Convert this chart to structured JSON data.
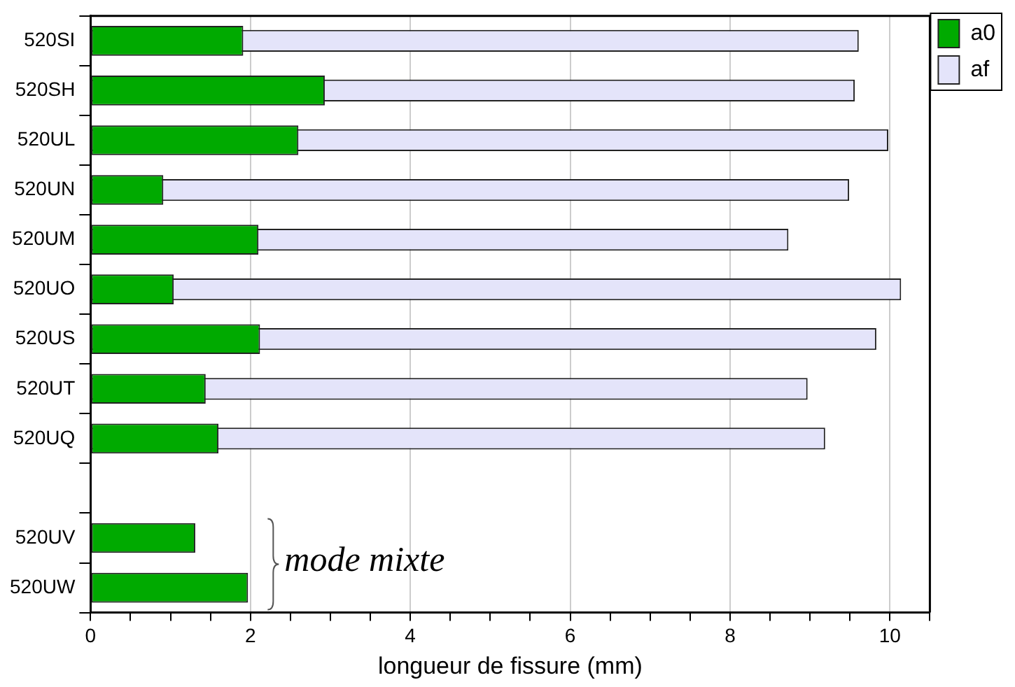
{
  "chart_data": {
    "type": "bar",
    "orientation": "horizontal",
    "xlabel": "longueur de fissure (mm)",
    "categories": [
      "520SI",
      "520SH",
      "520UL",
      "520UN",
      "520UM",
      "520UO",
      "520US",
      "520UT",
      "520UQ",
      null,
      "520UV",
      "520UW"
    ],
    "series": [
      {
        "name": "a0",
        "color": "#00aa00",
        "values": [
          1.91,
          2.93,
          2.6,
          0.91,
          2.1,
          1.04,
          2.12,
          1.44,
          1.6,
          null,
          1.31,
          1.97
        ]
      },
      {
        "name": "af",
        "color": "#e4e4fa",
        "values": [
          9.61,
          9.56,
          9.98,
          9.49,
          8.73,
          10.14,
          9.83,
          8.97,
          9.19,
          null,
          null,
          null
        ]
      }
    ],
    "xlim": [
      0,
      10.5
    ],
    "xticks": [
      0,
      {
        "value": 0.5,
        "label": null
      },
      {
        "value": 1,
        "label": null
      },
      {
        "value": 1.5,
        "label": null
      },
      2,
      {
        "value": 2.5,
        "label": null
      },
      {
        "value": 3,
        "label": null
      },
      {
        "value": 3.5,
        "label": null
      },
      4,
      {
        "value": 4.5,
        "label": null
      },
      {
        "value": 5,
        "label": null
      },
      {
        "value": 5.5,
        "label": null
      },
      6,
      {
        "value": 6.5,
        "label": null
      },
      {
        "value": 7,
        "label": null
      },
      {
        "value": 7.5,
        "label": null
      },
      8,
      {
        "value": 8.5,
        "label": null
      },
      {
        "value": 9,
        "label": null
      },
      {
        "value": 9.5,
        "label": null
      },
      10,
      {
        "value": 10.5,
        "label": null
      }
    ],
    "grid": "x",
    "legend": "top right",
    "annotations": [
      "mode mixte"
    ]
  }
}
